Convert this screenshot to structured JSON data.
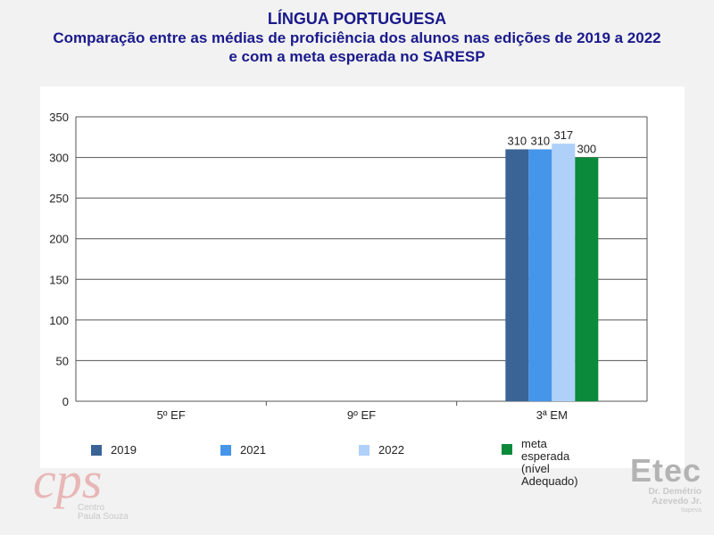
{
  "header": {
    "title": "LÍNGUA PORTUGUESA",
    "subtitle_line1": "Comparação entre as médias de proficiência dos alunos nas edições de 2019 a 2022",
    "subtitle_line2": "e com a meta esperada no SARESP"
  },
  "chart_data": {
    "type": "bar",
    "categories": [
      "5º EF",
      "9º EF",
      "3ª EM"
    ],
    "series": [
      {
        "name": "2019",
        "color": "#3a6496",
        "values": [
          null,
          null,
          310
        ]
      },
      {
        "name": "2021",
        "color": "#4595ea",
        "values": [
          null,
          null,
          310
        ]
      },
      {
        "name": "2022",
        "color": "#afd1f9",
        "values": [
          null,
          null,
          317
        ]
      },
      {
        "name": "meta esperada\n(nível Adequado)",
        "color": "#0a8a3a",
        "values": [
          null,
          null,
          300
        ]
      }
    ],
    "ylim": [
      0,
      350
    ],
    "yticks": [
      0,
      50,
      100,
      150,
      200,
      250,
      300,
      350
    ],
    "grid": true,
    "legend": "bottom"
  },
  "logos": {
    "cps_mark": "cps",
    "cps_name": "Centro\nPaula Souza",
    "etec_word": "Etec",
    "etec_name1": "Dr. Demétrio",
    "etec_name2": "Azevedo Jr.",
    "etec_city": "Itapeva"
  }
}
